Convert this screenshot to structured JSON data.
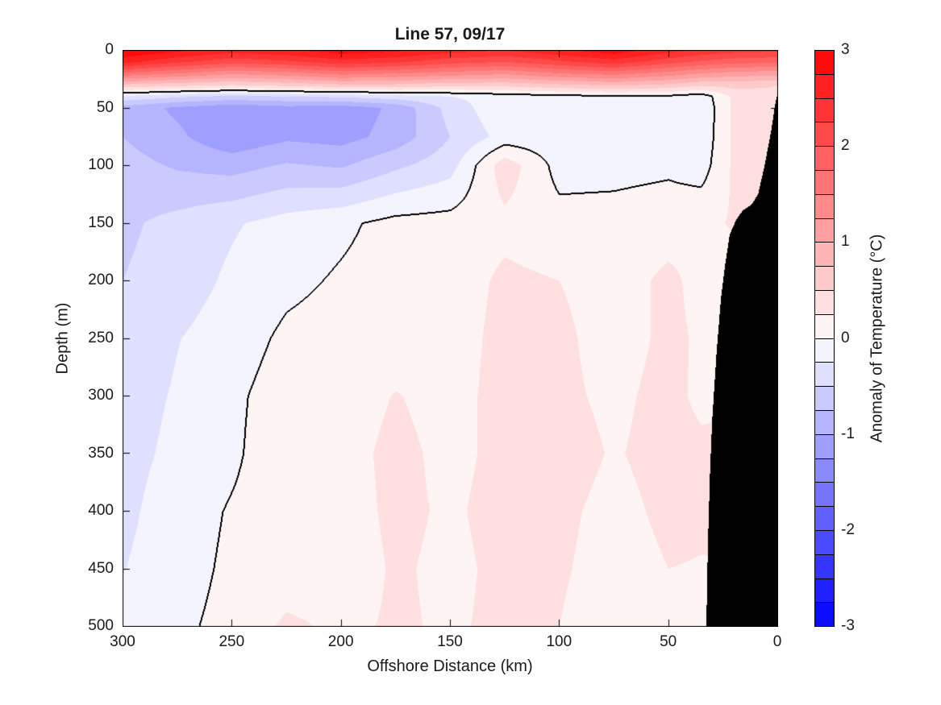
{
  "figure": {
    "title": "Line 57, 09/17",
    "background_color": "#ffffff",
    "text_color": "#1a1a1a"
  },
  "axes": {
    "x": {
      "label": "Offshore Distance (km)",
      "min": 0,
      "max": 300,
      "reversed": true,
      "ticks": [
        300,
        250,
        200,
        150,
        100,
        50,
        0
      ],
      "tick_direction": "in"
    },
    "y": {
      "label": "Depth (m)",
      "min": 0,
      "max": 500,
      "increases_downward": true,
      "ticks": [
        0,
        50,
        100,
        150,
        200,
        250,
        300,
        350,
        400,
        450,
        500
      ],
      "tick_direction": "in"
    }
  },
  "colorbar": {
    "label": "Anomaly of Temperature (°C)",
    "ticks": [
      3,
      2,
      1,
      0,
      -1,
      -2,
      -3
    ],
    "min": -3,
    "max": 3,
    "band_step": 0.25,
    "positive_color": "#ff0000",
    "zero_color": "#ffffff",
    "negative_color": "#0000ff",
    "outline_color": "#000000",
    "segment_separator_color": "#000000"
  },
  "chart_data": {
    "type": "heatmap",
    "subtype": "filled-contour-ocean-section",
    "title": "Line 57, 09/17",
    "xlabel": "Offshore Distance (km)",
    "ylabel": "Depth (m)",
    "zlabel": "Anomaly of Temperature (°C)",
    "xlim": [
      300,
      0
    ],
    "ylim": [
      0,
      500
    ],
    "zlim": [
      -3,
      3
    ],
    "band_step": 0.25,
    "grid": false,
    "legend": "colorbar-right",
    "contour_level": 0,
    "contour_color": "#000000",
    "mask_color": "#000000",
    "x_km": [
      300,
      275,
      250,
      225,
      200,
      175,
      150,
      125,
      100,
      75,
      50,
      35,
      20,
      0
    ],
    "depth_m": [
      0,
      10,
      20,
      30,
      40,
      50,
      75,
      100,
      150,
      200,
      250,
      300,
      350,
      400,
      450,
      500
    ],
    "anomaly_grid": [
      [
        3.0,
        2.8,
        2.6,
        2.7,
        2.9,
        2.8,
        2.6,
        2.5,
        2.7,
        2.9,
        2.6,
        2.45,
        2.35,
        2.3
      ],
      [
        2.6,
        2.3,
        2.1,
        2.2,
        2.4,
        2.3,
        2.1,
        2.0,
        2.2,
        2.4,
        2.1,
        1.95,
        1.85,
        1.8
      ],
      [
        1.7,
        1.5,
        1.3,
        1.4,
        1.6,
        1.5,
        1.4,
        1.3,
        1.5,
        1.6,
        1.4,
        1.25,
        1.15,
        1.1
      ],
      [
        0.7,
        0.6,
        0.5,
        0.6,
        0.7,
        0.7,
        0.6,
        0.6,
        0.7,
        0.8,
        0.7,
        0.55,
        0.6,
        0.5
      ],
      [
        -0.3,
        -0.45,
        -0.55,
        -0.5,
        -0.45,
        -0.35,
        -0.25,
        -0.15,
        -0.08,
        -0.05,
        -0.05,
        -0.15,
        0.3,
        0.45
      ],
      [
        -0.85,
        -1.05,
        -1.2,
        -1.1,
        -1.15,
        -0.95,
        -0.4,
        -0.05,
        -0.18,
        -0.12,
        -0.08,
        -0.2,
        0.3,
        0.4
      ],
      [
        -0.75,
        -0.95,
        -1.2,
        -1.05,
        -1.1,
        -0.9,
        -0.5,
        -0.15,
        -0.16,
        -0.1,
        -0.06,
        -0.18,
        0.3,
        0.35
      ],
      [
        -0.65,
        -0.78,
        -0.85,
        -0.72,
        -0.78,
        -0.55,
        -0.35,
        0.4,
        -0.1,
        -0.08,
        -0.05,
        -0.12,
        0.3,
        0.3
      ],
      [
        -0.55,
        -0.42,
        -0.28,
        -0.15,
        -0.05,
        0.08,
        0.1,
        0.18,
        0.1,
        0.1,
        0.15,
        0.2,
        0.27,
        0.3
      ],
      [
        -0.5,
        -0.38,
        -0.2,
        -0.06,
        0.03,
        0.1,
        0.12,
        0.3,
        0.25,
        0.15,
        0.3,
        0.18,
        0.15,
        0.2
      ],
      [
        -0.45,
        -0.26,
        -0.12,
        0.05,
        0.1,
        0.14,
        0.15,
        0.32,
        0.3,
        0.15,
        0.3,
        0.22,
        0.2,
        0.2
      ],
      [
        -0.38,
        -0.22,
        -0.05,
        0.12,
        0.15,
        0.26,
        0.18,
        0.32,
        0.3,
        0.2,
        0.32,
        0.2,
        0.25,
        0.25
      ],
      [
        -0.35,
        -0.18,
        -0.04,
        0.15,
        0.18,
        0.3,
        0.2,
        0.3,
        0.35,
        0.23,
        0.33,
        0.3,
        0.27,
        0.27
      ],
      [
        -0.32,
        -0.1,
        0.02,
        0.12,
        0.15,
        0.3,
        0.22,
        0.32,
        0.3,
        0.18,
        0.3,
        0.28,
        0.27,
        0.27
      ],
      [
        -0.26,
        -0.08,
        0.04,
        0.1,
        0.12,
        0.28,
        0.2,
        0.3,
        0.28,
        0.15,
        0.25,
        0.24,
        0.25,
        0.25
      ],
      [
        -0.15,
        -0.04,
        0.06,
        0.3,
        0.2,
        0.28,
        0.22,
        0.3,
        0.25,
        0.1,
        0.15,
        0.13,
        0.12,
        0.12
      ]
    ],
    "bathymetry_km_depth": [
      [
        0,
        37
      ],
      [
        1,
        45
      ],
      [
        3,
        70
      ],
      [
        6,
        100
      ],
      [
        9,
        125
      ],
      [
        12,
        134
      ],
      [
        16,
        139
      ],
      [
        19,
        147
      ],
      [
        22,
        160
      ],
      [
        24,
        185
      ],
      [
        26,
        215
      ],
      [
        28,
        262
      ],
      [
        30,
        320
      ],
      [
        31,
        365
      ],
      [
        32,
        430
      ],
      [
        32.7,
        500
      ],
      [
        33,
        520
      ]
    ]
  }
}
